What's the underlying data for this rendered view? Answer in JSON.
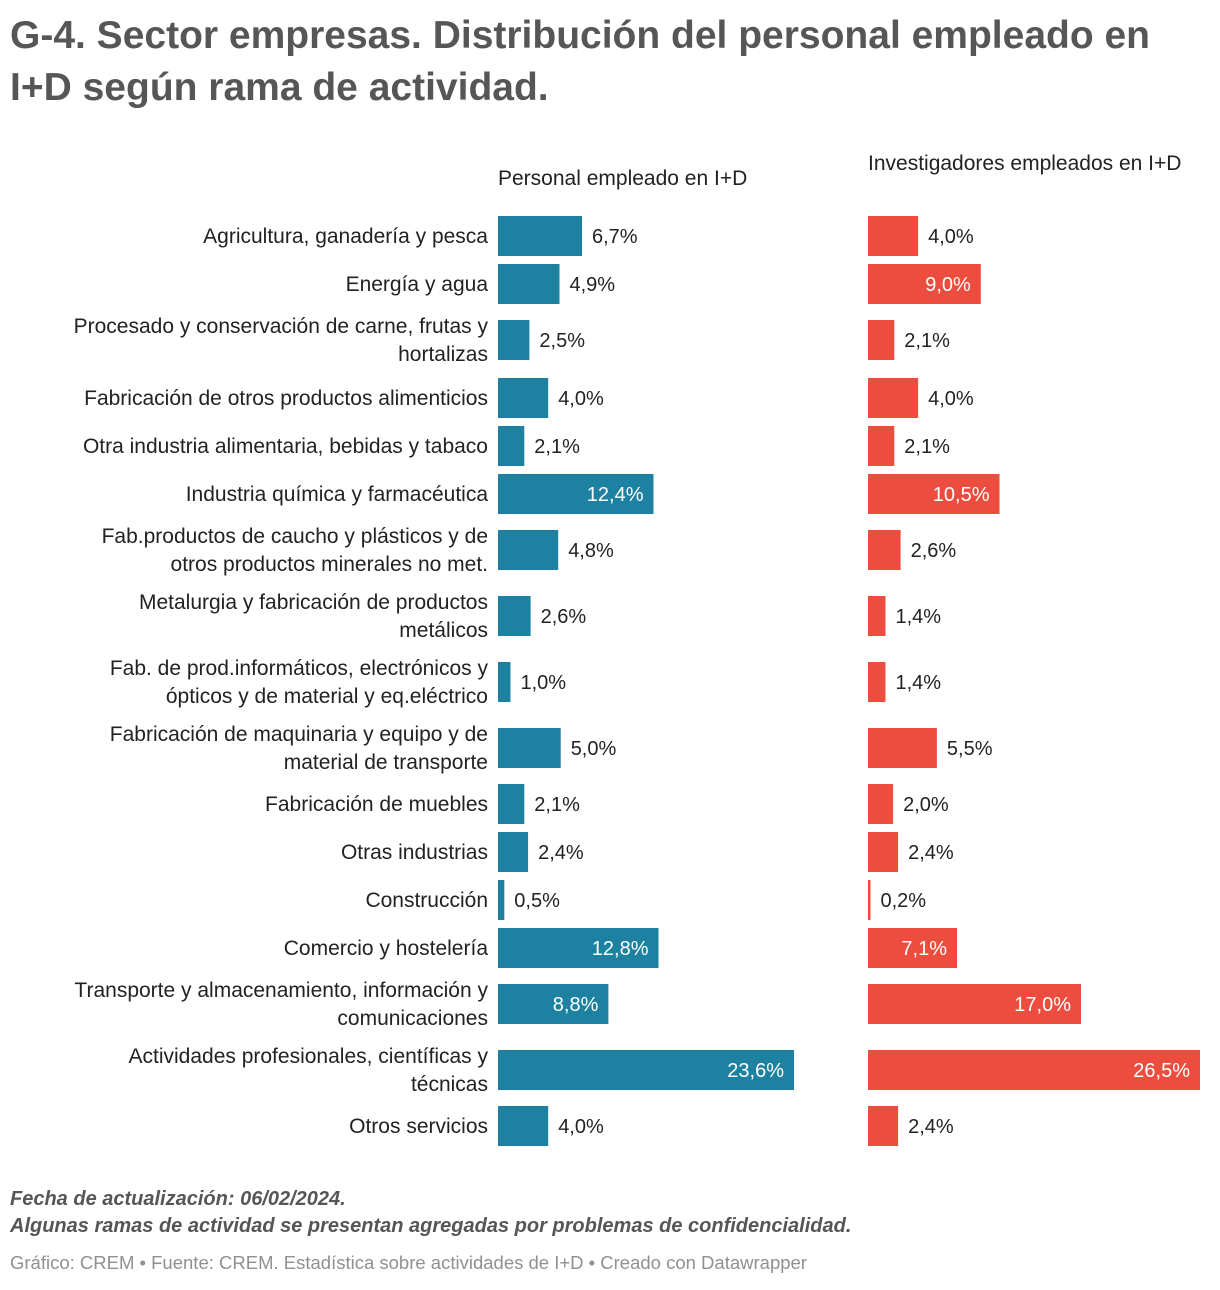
{
  "title": "G-4. Sector empresas. Distribución del personal empleado en I+D según rama de actividad.",
  "chart_data": {
    "type": "bar",
    "orientation": "horizontal",
    "value_format": "percent_comma_1dp",
    "categories": [
      "Agricultura, ganadería y pesca",
      "Energía y agua",
      "Procesado y conservación de carne, frutas y hortalizas",
      "Fabricación de otros productos alimenticios",
      "Otra industria alimentaria, bebidas y tabaco",
      "Industria química y farmacéutica",
      "Fab.productos de caucho y plásticos y de otros productos minerales no met.",
      "Metalurgia y fabricación de productos metálicos",
      "Fab. de prod.informáticos, electrónicos y ópticos y de material y eq.eléctrico",
      "Fabricación de maquinaria y equipo y de material de transporte",
      "Fabricación de muebles",
      "Otras industrias",
      "Construcción",
      "Comercio y hostelería",
      "Transporte y almacenamiento, información y comunicaciones",
      "Actividades profesionales, científicas y técnicas",
      "Otros servicios"
    ],
    "series": [
      {
        "name": "Personal empleado en I+D",
        "color": "#1d81a2",
        "values": [
          6.7,
          4.9,
          2.5,
          4.0,
          2.1,
          12.4,
          4.8,
          2.6,
          1.0,
          5.0,
          2.1,
          2.4,
          0.5,
          12.8,
          8.8,
          23.6,
          4.0
        ]
      },
      {
        "name": "Investigadores empleados en I+D",
        "color": "#ed4d3f",
        "values": [
          4.0,
          9.0,
          2.1,
          4.0,
          2.1,
          10.5,
          2.6,
          1.4,
          1.4,
          5.5,
          2.0,
          2.4,
          0.2,
          7.1,
          17.0,
          26.5,
          2.4
        ]
      }
    ]
  },
  "notes": {
    "line1": "Fecha de actualización: 06/02/2024.",
    "line2": "Algunas ramas de actividad se presentan agregadas por problemas de confidencialidad."
  },
  "credits": "Gráfico: CREM • Fuente: CREM. Estadística sobre actividades de I+D • Creado con Datawrapper"
}
